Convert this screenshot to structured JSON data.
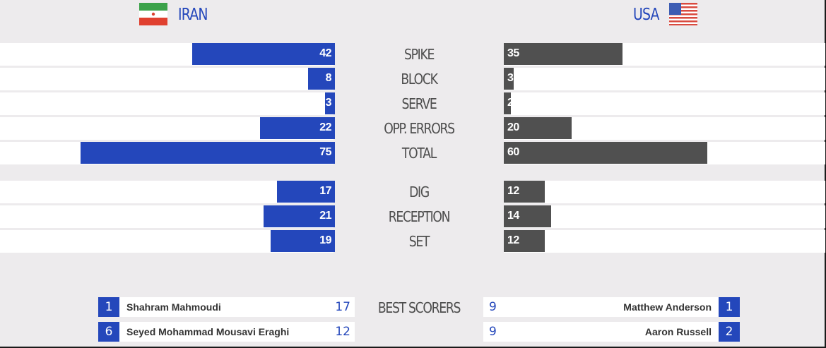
{
  "teams": {
    "left": {
      "name": "IRAN",
      "flag_icon": "iran-flag-icon",
      "color": "#2447bb"
    },
    "right": {
      "name": "USA",
      "flag_icon": "usa-flag-icon",
      "color": "#505050"
    }
  },
  "chart_data": {
    "type": "bar",
    "orientation": "horizontal-diverging",
    "categories": [
      "SPIKE",
      "BLOCK",
      "SERVE",
      "OPP. ERRORS",
      "TOTAL",
      "DIG",
      "RECEPTION",
      "SET"
    ],
    "series": [
      {
        "name": "IRAN",
        "values": [
          42,
          8,
          3,
          22,
          75,
          17,
          21,
          19
        ],
        "color": "#2447bb"
      },
      {
        "name": "USA",
        "values": [
          35,
          3,
          2,
          20,
          60,
          12,
          14,
          12
        ],
        "color": "#505050"
      }
    ],
    "max_value": 80
  },
  "best_scorers": {
    "label": "BEST SCORERS",
    "left": [
      {
        "number": "1",
        "name": "Shahram Mahmoudi",
        "points": "17"
      },
      {
        "number": "6",
        "name": "Seyed Mohammad Mousavi Eraghi",
        "points": "12"
      }
    ],
    "right": [
      {
        "number": "1",
        "name": "Matthew Anderson",
        "points": "9"
      },
      {
        "number": "2",
        "name": "Aaron Russell",
        "points": "9"
      }
    ]
  }
}
